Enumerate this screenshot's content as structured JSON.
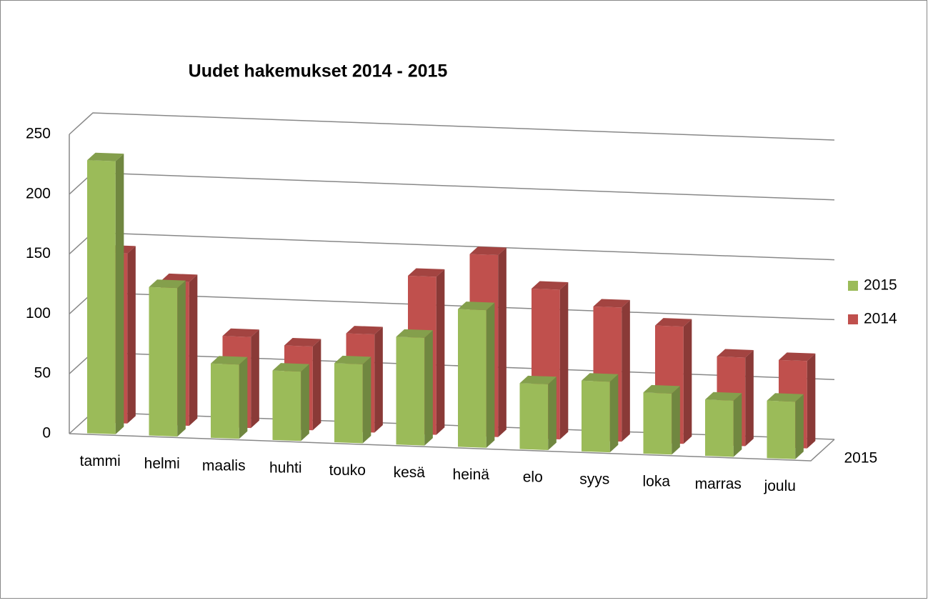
{
  "chart_data": {
    "type": "bar3d",
    "title": "Uudet hakemukset 2014 - 2015",
    "categories": [
      "tammi",
      "helmi",
      "maalis",
      "huhti",
      "touko",
      "kesä",
      "heinä",
      "elo",
      "syys",
      "loka",
      "marras",
      "joulu"
    ],
    "series": [
      {
        "name": "2015",
        "color": "#9bbb59",
        "values": [
          228,
          124,
          62,
          58,
          66,
          90,
          115,
          55,
          59,
          51,
          47,
          48
        ]
      },
      {
        "name": "2014",
        "color": "#c0504d",
        "values": [
          142,
          120,
          76,
          70,
          82,
          132,
          152,
          125,
          112,
          98,
          74,
          73
        ]
      }
    ],
    "depth_categories": [
      "2015"
    ],
    "ylim": [
      0,
      250
    ],
    "yticks": [
      0,
      50,
      100,
      150,
      200,
      250
    ],
    "grid": true,
    "legend": "right"
  }
}
